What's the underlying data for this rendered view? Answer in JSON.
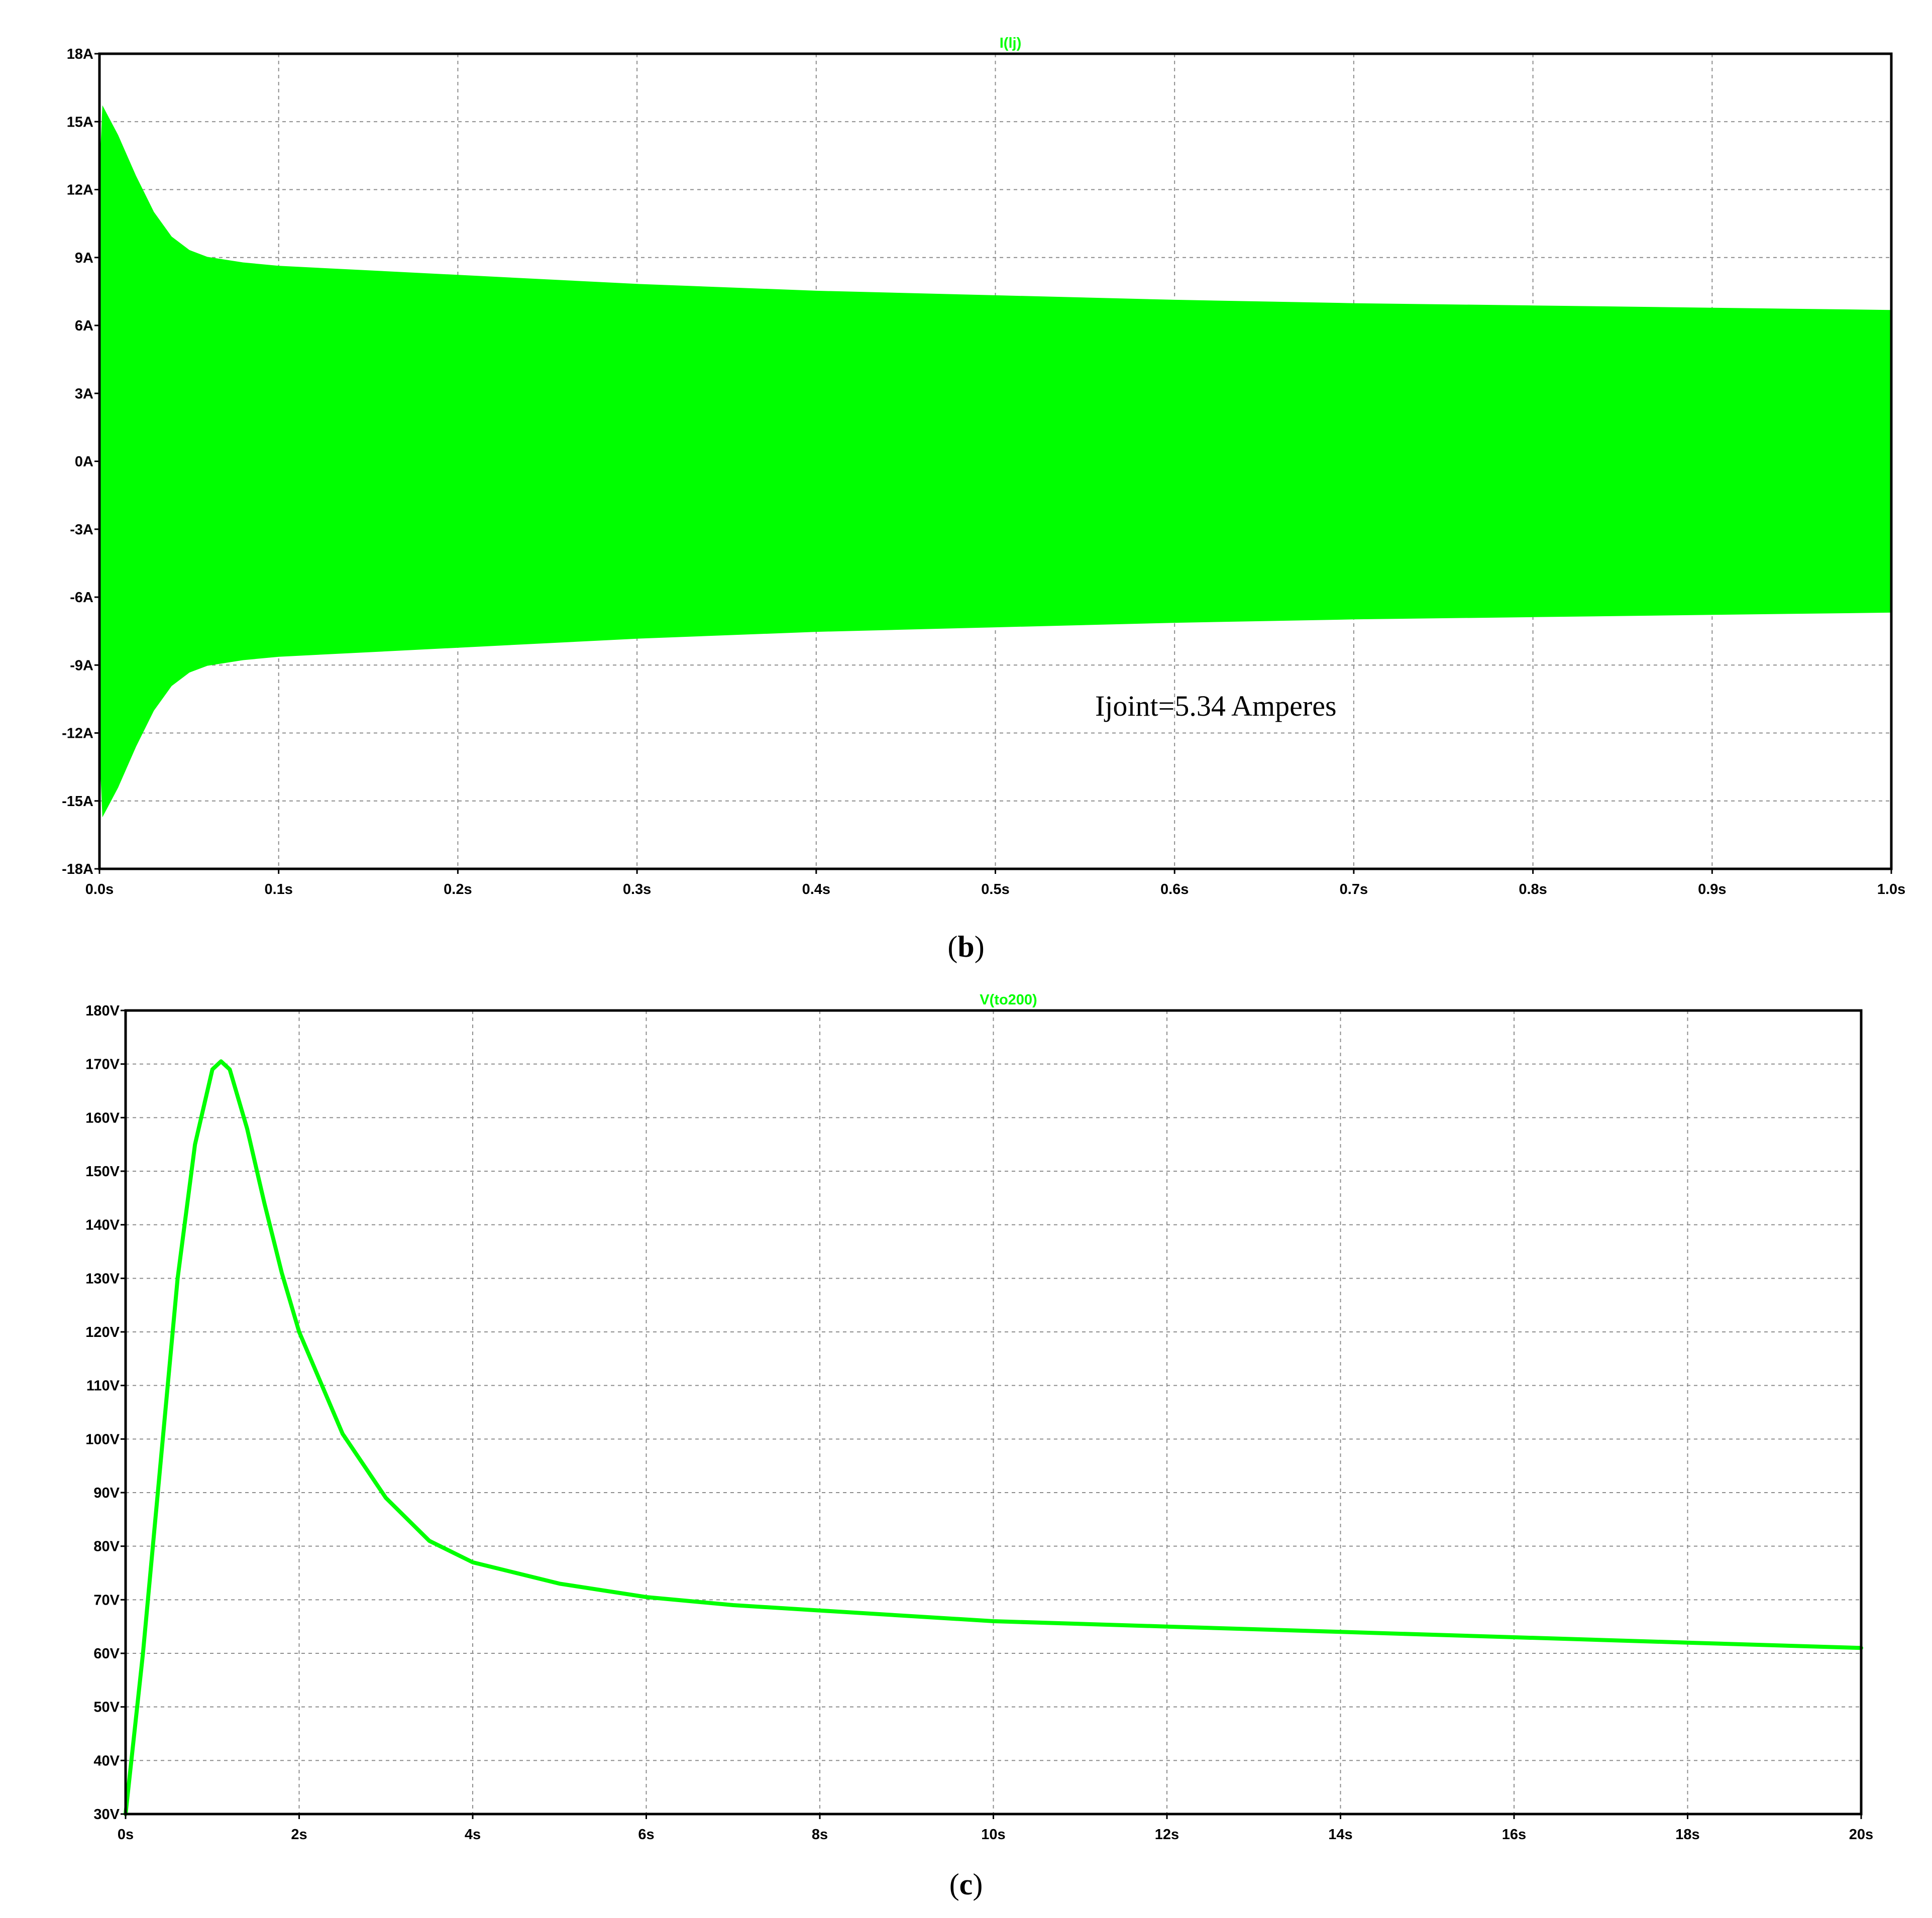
{
  "colors": {
    "trace": "#00ff00",
    "grid": "#8c8c8c",
    "frame": "#000000",
    "background": "#ffffff"
  },
  "chart_data": [
    {
      "type": "area",
      "panel_label": "b",
      "trace_name": "I(lj)",
      "annotation": "Ijoint=5.34 Amperes",
      "grid": true,
      "xlim": [
        0,
        1.0
      ],
      "ylim": [
        -18,
        18
      ],
      "x_ticks": [
        0,
        0.1,
        0.2,
        0.3,
        0.4,
        0.5,
        0.6,
        0.7,
        0.8,
        0.9,
        1.0
      ],
      "x_tick_labels": [
        "0.0s",
        "0.1s",
        "0.2s",
        "0.3s",
        "0.4s",
        "0.5s",
        "0.6s",
        "0.7s",
        "0.8s",
        "0.9s",
        "1.0s"
      ],
      "y_ticks": [
        18,
        15,
        12,
        9,
        6,
        3,
        0,
        -3,
        -6,
        -9,
        -12,
        -15,
        -18
      ],
      "y_tick_labels": [
        "18A",
        "15A",
        "12A",
        "9A",
        "6A",
        "3A",
        "0A",
        "-3A",
        "-6A",
        "-9A",
        "-12A",
        "-15A",
        "-18A"
      ],
      "series": [
        {
          "description_of_shape": "oscillating current envelope",
          "x": [
            0.0,
            0.002,
            0.01,
            0.02,
            0.03,
            0.04,
            0.05,
            0.06,
            0.08,
            0.1,
            0.15,
            0.2,
            0.3,
            0.4,
            0.5,
            0.6,
            0.7,
            0.8,
            0.9,
            1.0
          ],
          "upper": [
            12.0,
            15.6,
            14.4,
            12.6,
            11.0,
            9.9,
            9.3,
            9.0,
            8.75,
            8.6,
            8.4,
            8.2,
            7.8,
            7.5,
            7.3,
            7.1,
            6.95,
            6.85,
            6.75,
            6.65
          ],
          "lower": [
            -12.0,
            -15.6,
            -14.4,
            -12.6,
            -11.0,
            -9.9,
            -9.3,
            -9.0,
            -8.75,
            -8.6,
            -8.4,
            -8.2,
            -7.8,
            -7.5,
            -7.3,
            -7.1,
            -6.95,
            -6.85,
            -6.75,
            -6.65
          ]
        }
      ]
    },
    {
      "type": "line",
      "panel_label": "c",
      "trace_name": "V(to200)",
      "grid": true,
      "xlim": [
        0,
        20
      ],
      "ylim": [
        30,
        180
      ],
      "x_ticks": [
        0,
        2,
        4,
        6,
        8,
        10,
        12,
        14,
        16,
        18,
        20
      ],
      "x_tick_labels": [
        "0s",
        "2s",
        "4s",
        "6s",
        "8s",
        "10s",
        "12s",
        "14s",
        "16s",
        "18s",
        "20s"
      ],
      "y_ticks": [
        180,
        170,
        160,
        150,
        140,
        130,
        120,
        110,
        100,
        90,
        80,
        70,
        60,
        50,
        40,
        30
      ],
      "y_tick_labels": [
        "180V",
        "170V",
        "160V",
        "150V",
        "140V",
        "130V",
        "120V",
        "110V",
        "100V",
        "90V",
        "80V",
        "70V",
        "60V",
        "50V",
        "40V",
        "30V"
      ],
      "series": [
        {
          "x": [
            0,
            0.2,
            0.4,
            0.6,
            0.8,
            1.0,
            1.1,
            1.2,
            1.4,
            1.6,
            1.8,
            2.0,
            2.5,
            3.0,
            3.5,
            4.0,
            4.5,
            5.0,
            6.0,
            7.0,
            8.0,
            10.0,
            12.0,
            14.0,
            16.0,
            18.0,
            20.0
          ],
          "y": [
            30,
            60,
            95,
            130,
            155,
            169,
            170.5,
            169,
            158,
            144,
            131,
            120,
            101,
            89,
            81,
            77,
            75,
            73,
            70.5,
            69,
            68,
            66,
            65,
            64,
            63,
            62,
            61
          ]
        }
      ]
    }
  ]
}
